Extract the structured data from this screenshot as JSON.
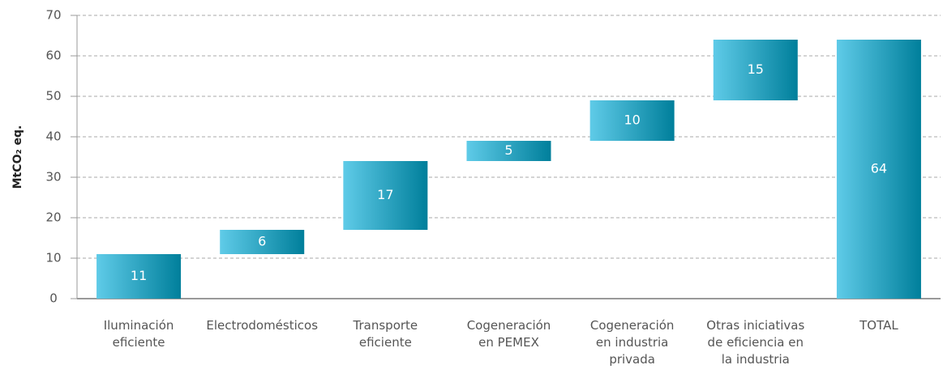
{
  "chart_data": {
    "type": "waterfall",
    "categories": [
      "Iluminación\neficiente",
      "Electrodomésticos",
      "Transporte\neficiente",
      "Cogeneración\nen PEMEX",
      "Cogeneración\nen industria\nprivada",
      "Otras iniciativas\nde eficiencia en\nla industria",
      "TOTAL"
    ],
    "values": [
      11,
      6,
      17,
      5,
      10,
      15,
      64
    ],
    "last_is_total": true,
    "color": [
      "#5fcbe8",
      "#007f9b"
    ],
    "ylabel": "MtCO₂ eq.",
    "ylim": [
      0,
      70
    ],
    "yticks": [
      0,
      10,
      20,
      30,
      40,
      50,
      60,
      70
    ],
    "grid": true
  }
}
